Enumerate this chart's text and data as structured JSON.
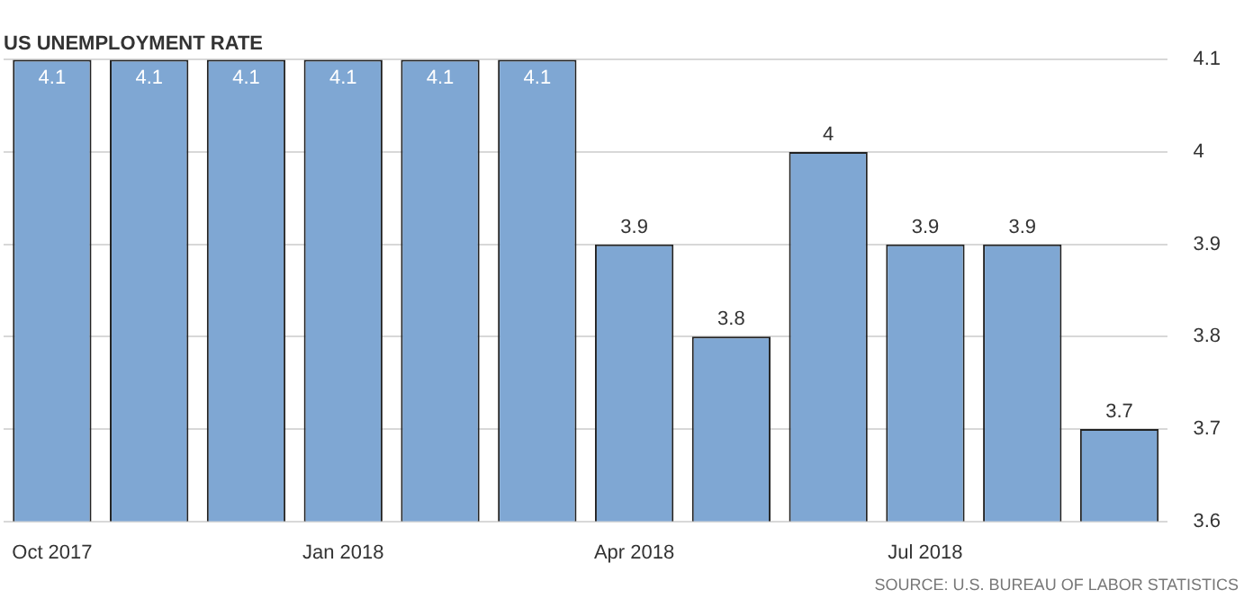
{
  "chart_data": {
    "type": "bar",
    "title": "US UNEMPLOYMENT RATE",
    "categories": [
      "Oct 2017",
      null,
      null,
      "Jan 2018",
      null,
      null,
      "Apr 2018",
      null,
      null,
      "Jul 2018",
      null,
      null
    ],
    "values": [
      4.1,
      4.1,
      4.1,
      4.1,
      4.1,
      4.1,
      3.9,
      3.8,
      4,
      3.9,
      3.9,
      3.7
    ],
    "color": "#7fa7d3",
    "ylim": [
      3.6,
      4.1
    ],
    "yticks": [
      3.6,
      3.7,
      3.8,
      3.9,
      4,
      4.1
    ],
    "grid": "y",
    "data_labels": true,
    "annotations": [
      "SOURCE: U.S. BUREAU OF LABOR STATISTICS"
    ]
  }
}
